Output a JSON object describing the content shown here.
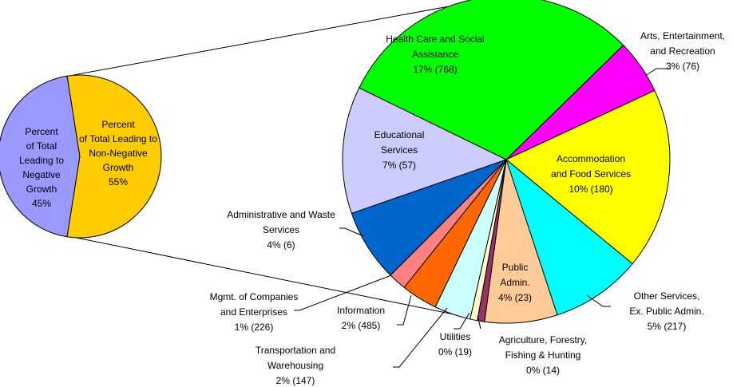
{
  "chart_data": [
    {
      "type": "pie",
      "categories": [
        [
          "Percent",
          "of Total",
          "Leading to",
          "Negative",
          "Growth"
        ],
        [
          "Percent",
          "of Total Leading to",
          "Non-Negative",
          "Growth"
        ]
      ],
      "values": [
        45,
        55
      ],
      "value_labels": [
        "45%",
        "55%"
      ],
      "colors": [
        "#9999ff",
        "#ffcc00"
      ]
    },
    {
      "type": "pie",
      "categories": [
        [
          "Health Care and Social",
          "Assistance"
        ],
        [
          "Arts, Entertainment,",
          "and Recreation"
        ],
        [
          "Accommodation",
          "and Food Services"
        ],
        [
          "Other Services,",
          "Ex. Public Admin."
        ],
        [
          "Public",
          "Admin."
        ],
        [
          "Agriculture, Forestry,",
          "Fishing & Hunting"
        ],
        [
          "Utilities"
        ],
        [
          "Transportation and",
          "Warehousing"
        ],
        [
          "Information"
        ],
        [
          "Mgmt. of Companies",
          "and Enterprises"
        ],
        [
          "Administrative and Waste",
          "Services"
        ],
        [
          "Educational",
          "Services"
        ]
      ],
      "values": [
        17,
        3,
        10,
        5,
        4,
        0.4,
        0.4,
        2,
        2,
        1,
        4,
        7
      ],
      "value_labels": [
        "17% (768)",
        "3% (76)",
        "10% (180)",
        "5% (217)",
        "4% (23)",
        "0% (14)",
        "0% (19)",
        "2% (147)",
        "2% (485)",
        "1% (226)",
        "4% (6)",
        "7% (57)"
      ],
      "colors": [
        "#00ff00",
        "#ff00ff",
        "#ffff00",
        "#00ffff",
        "#ffcc99",
        "#993366",
        "#ffffcc",
        "#ccffff",
        "#ff6600",
        "#ff8080",
        "#0066cc",
        "#ccccff"
      ]
    }
  ]
}
